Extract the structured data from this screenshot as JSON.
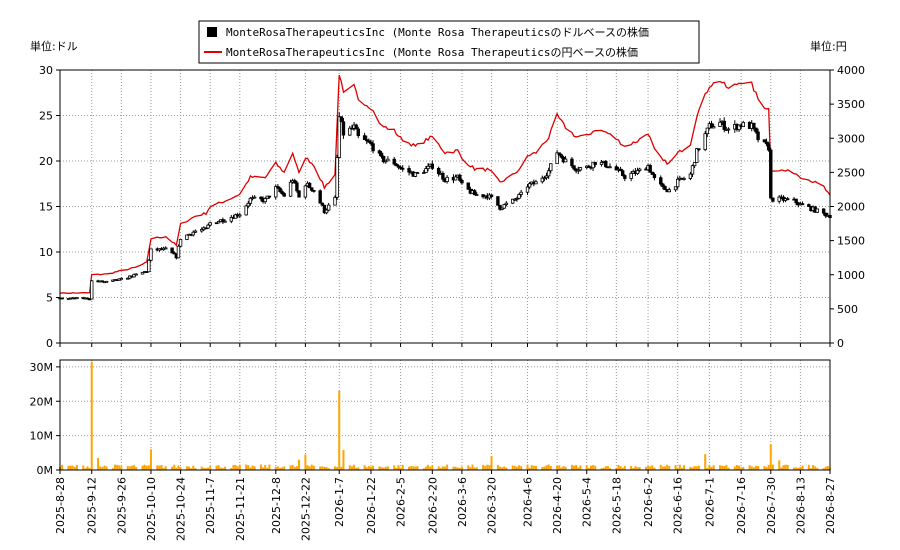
{
  "chart_data": {
    "type": "candlestick",
    "legend": {
      "placement": "top-center",
      "entries": [
        {
          "label": "MonteRosaTherapeuticsInc (Monte Rosa Therapeuticsのドルベースの株価",
          "color": "#000000",
          "marker": "square"
        },
        {
          "label": "MonteRosaTherapeuticsInc (Monte Rosa Therapeuticsの円ベースの株価",
          "color": "#dd0000",
          "marker": "line"
        }
      ]
    },
    "left_axis": {
      "unit_label": "単位:ドル",
      "ylim": [
        0,
        30
      ],
      "ticks": [
        0,
        5,
        10,
        15,
        20,
        25,
        30
      ]
    },
    "right_axis": {
      "unit_label": "単位:円",
      "ylim": [
        0,
        4000
      ],
      "ticks": [
        0,
        500,
        1000,
        1500,
        2000,
        2500,
        3000,
        3500,
        4000
      ]
    },
    "volume_axis": {
      "ylim": [
        0,
        32000000
      ],
      "ticks": [
        0,
        10000000,
        20000000,
        30000000
      ],
      "tick_labels": [
        "0M",
        "10M",
        "20M",
        "30M"
      ]
    },
    "x_axis": {
      "start": "2025-08-28",
      "end": "2026-08-27",
      "tick_labels": [
        "2025-8-28",
        "2025-9-12",
        "2025-9-26",
        "2025-10-10",
        "2025-10-24",
        "2025-11-7",
        "2025-11-21",
        "2025-12-8",
        "2025-12-22",
        "2026-1-7",
        "2026-1-22",
        "2026-2-5",
        "2026-2-20",
        "2026-3-6",
        "2026-3-20",
        "2026-4-6",
        "2026-4-20",
        "2026-5-4",
        "2026-5-18",
        "2026-6-2",
        "2026-6-16",
        "2026-7-1",
        "2026-7-16",
        "2026-7-30",
        "2026-8-13",
        "2026-8-27"
      ]
    },
    "grid": "dotted",
    "colors": {
      "candle": "#000000",
      "yen_line": "#dd0000",
      "volume": "#ffa500"
    },
    "price_usd": [
      [
        "2025-08-28",
        4.9
      ],
      [
        "2025-09-11",
        4.9
      ],
      [
        "2025-09-12",
        6.8
      ],
      [
        "2025-09-19",
        6.7
      ],
      [
        "2025-09-26",
        7.0
      ],
      [
        "2025-10-03",
        7.5
      ],
      [
        "2025-10-08",
        7.9
      ],
      [
        "2025-10-10",
        10.2
      ],
      [
        "2025-10-17",
        10.3
      ],
      [
        "2025-10-22",
        9.5
      ],
      [
        "2025-10-24",
        11.5
      ],
      [
        "2025-10-31",
        12.3
      ],
      [
        "2025-11-05",
        12.5
      ],
      [
        "2025-11-07",
        13.2
      ],
      [
        "2025-11-14",
        13.6
      ],
      [
        "2025-11-21",
        14.2
      ],
      [
        "2025-11-26",
        15.8
      ],
      [
        "2025-12-03",
        15.7
      ],
      [
        "2025-12-08",
        17.0
      ],
      [
        "2025-12-12",
        16.2
      ],
      [
        "2025-12-16",
        18.0
      ],
      [
        "2025-12-19",
        16.0
      ],
      [
        "2025-12-22",
        17.5
      ],
      [
        "2025-12-26",
        16.8
      ],
      [
        "2025-12-31",
        14.5
      ],
      [
        "2026-01-05",
        15.8
      ],
      [
        "2026-01-07",
        24.8
      ],
      [
        "2026-01-09",
        23.0
      ],
      [
        "2026-01-14",
        23.7
      ],
      [
        "2026-01-16",
        22.6
      ],
      [
        "2026-01-22",
        21.8
      ],
      [
        "2026-01-27",
        20.2
      ],
      [
        "2026-02-02",
        19.8
      ],
      [
        "2026-02-05",
        19.2
      ],
      [
        "2026-02-12",
        18.5
      ],
      [
        "2026-02-18",
        19.2
      ],
      [
        "2026-02-20",
        19.5
      ],
      [
        "2026-02-26",
        18.0
      ],
      [
        "2026-03-04",
        18.2
      ],
      [
        "2026-03-06",
        17.3
      ],
      [
        "2026-03-12",
        16.3
      ],
      [
        "2026-03-18",
        16.2
      ],
      [
        "2026-03-20",
        15.9
      ],
      [
        "2026-03-24",
        14.9
      ],
      [
        "2026-03-30",
        15.6
      ],
      [
        "2026-04-03",
        16.3
      ],
      [
        "2026-04-06",
        17.3
      ],
      [
        "2026-04-10",
        17.6
      ],
      [
        "2026-04-16",
        18.9
      ],
      [
        "2026-04-20",
        21.0
      ],
      [
        "2026-04-24",
        20.0
      ],
      [
        "2026-04-29",
        19.2
      ],
      [
        "2026-05-04",
        19.3
      ],
      [
        "2026-05-08",
        19.9
      ],
      [
        "2026-05-13",
        19.6
      ],
      [
        "2026-05-18",
        19.0
      ],
      [
        "2026-05-22",
        18.3
      ],
      [
        "2026-05-28",
        18.8
      ],
      [
        "2026-06-02",
        19.5
      ],
      [
        "2026-06-05",
        18.0
      ],
      [
        "2026-06-09",
        17.0
      ],
      [
        "2026-06-12",
        16.8
      ],
      [
        "2026-06-16",
        17.7
      ],
      [
        "2026-06-22",
        18.5
      ],
      [
        "2026-06-25",
        21.0
      ],
      [
        "2026-07-01",
        23.8
      ],
      [
        "2026-07-06",
        24.2
      ],
      [
        "2026-07-10",
        23.5
      ],
      [
        "2026-07-16",
        24.0
      ],
      [
        "2026-07-21",
        23.8
      ],
      [
        "2026-07-25",
        22.0
      ],
      [
        "2026-07-29",
        21.5
      ],
      [
        "2026-07-30",
        15.8
      ],
      [
        "2026-08-04",
        15.8
      ],
      [
        "2026-08-10",
        15.6
      ],
      [
        "2026-08-13",
        15.2
      ],
      [
        "2026-08-18",
        14.8
      ],
      [
        "2026-08-24",
        14.2
      ],
      [
        "2026-08-27",
        14.0
      ]
    ],
    "price_jpy": [
      [
        "2025-08-28",
        730
      ],
      [
        "2025-09-11",
        735
      ],
      [
        "2025-09-12",
        1000
      ],
      [
        "2025-09-19",
        1010
      ],
      [
        "2025-09-26",
        1060
      ],
      [
        "2025-10-03",
        1110
      ],
      [
        "2025-10-08",
        1180
      ],
      [
        "2025-10-10",
        1530
      ],
      [
        "2025-10-17",
        1560
      ],
      [
        "2025-10-22",
        1430
      ],
      [
        "2025-10-24",
        1740
      ],
      [
        "2025-10-31",
        1860
      ],
      [
        "2025-11-05",
        1900
      ],
      [
        "2025-11-07",
        2000
      ],
      [
        "2025-11-14",
        2080
      ],
      [
        "2025-11-21",
        2180
      ],
      [
        "2025-11-26",
        2430
      ],
      [
        "2025-12-03",
        2420
      ],
      [
        "2025-12-08",
        2630
      ],
      [
        "2025-12-12",
        2500
      ],
      [
        "2025-12-16",
        2790
      ],
      [
        "2025-12-19",
        2480
      ],
      [
        "2025-12-22",
        2720
      ],
      [
        "2025-12-26",
        2610
      ],
      [
        "2025-12-31",
        2280
      ],
      [
        "2026-01-05",
        2470
      ],
      [
        "2026-01-07",
        3950
      ],
      [
        "2026-01-09",
        3650
      ],
      [
        "2026-01-14",
        3760
      ],
      [
        "2026-01-16",
        3580
      ],
      [
        "2026-01-22",
        3450
      ],
      [
        "2026-01-27",
        3180
      ],
      [
        "2026-02-02",
        3110
      ],
      [
        "2026-02-05",
        3000
      ],
      [
        "2026-02-12",
        2880
      ],
      [
        "2026-02-18",
        2990
      ],
      [
        "2026-02-20",
        3020
      ],
      [
        "2026-02-26",
        2790
      ],
      [
        "2026-03-04",
        2820
      ],
      [
        "2026-03-06",
        2700
      ],
      [
        "2026-03-12",
        2550
      ],
      [
        "2026-03-18",
        2540
      ],
      [
        "2026-03-20",
        2500
      ],
      [
        "2026-03-24",
        2350
      ],
      [
        "2026-03-30",
        2460
      ],
      [
        "2026-04-03",
        2570
      ],
      [
        "2026-04-06",
        2740
      ],
      [
        "2026-04-10",
        2790
      ],
      [
        "2026-04-16",
        3010
      ],
      [
        "2026-04-20",
        3330
      ],
      [
        "2026-04-24",
        3160
      ],
      [
        "2026-04-29",
        3020
      ],
      [
        "2026-05-04",
        3030
      ],
      [
        "2026-05-08",
        3130
      ],
      [
        "2026-05-13",
        3090
      ],
      [
        "2026-05-18",
        2990
      ],
      [
        "2026-05-22",
        2880
      ],
      [
        "2026-05-28",
        2960
      ],
      [
        "2026-06-02",
        3080
      ],
      [
        "2026-06-05",
        2830
      ],
      [
        "2026-06-09",
        2670
      ],
      [
        "2026-06-12",
        2630
      ],
      [
        "2026-06-16",
        2780
      ],
      [
        "2026-06-22",
        2920
      ],
      [
        "2026-06-25",
        3330
      ],
      [
        "2026-07-01",
        3770
      ],
      [
        "2026-07-06",
        3850
      ],
      [
        "2026-07-10",
        3720
      ],
      [
        "2026-07-16",
        3830
      ],
      [
        "2026-07-21",
        3790
      ],
      [
        "2026-07-25",
        3500
      ],
      [
        "2026-07-29",
        3430
      ],
      [
        "2026-07-30",
        2540
      ],
      [
        "2026-08-04",
        2530
      ],
      [
        "2026-08-10",
        2500
      ],
      [
        "2026-08-13",
        2440
      ],
      [
        "2026-08-18",
        2380
      ],
      [
        "2026-08-24",
        2290
      ],
      [
        "2026-08-27",
        2150
      ]
    ],
    "volume_spikes": [
      [
        "2025-09-12",
        31500000
      ],
      [
        "2025-09-15",
        3500000
      ],
      [
        "2025-10-10",
        6000000
      ],
      [
        "2025-12-22",
        4500000
      ],
      [
        "2025-12-19",
        3000000
      ],
      [
        "2026-01-07",
        23000000
      ],
      [
        "2026-01-09",
        5800000
      ],
      [
        "2026-03-20",
        4000000
      ],
      [
        "2026-06-29",
        4600000
      ],
      [
        "2026-07-30",
        7500000
      ],
      [
        "2026-08-03",
        2800000
      ]
    ],
    "volume_baseline": 1000000
  }
}
